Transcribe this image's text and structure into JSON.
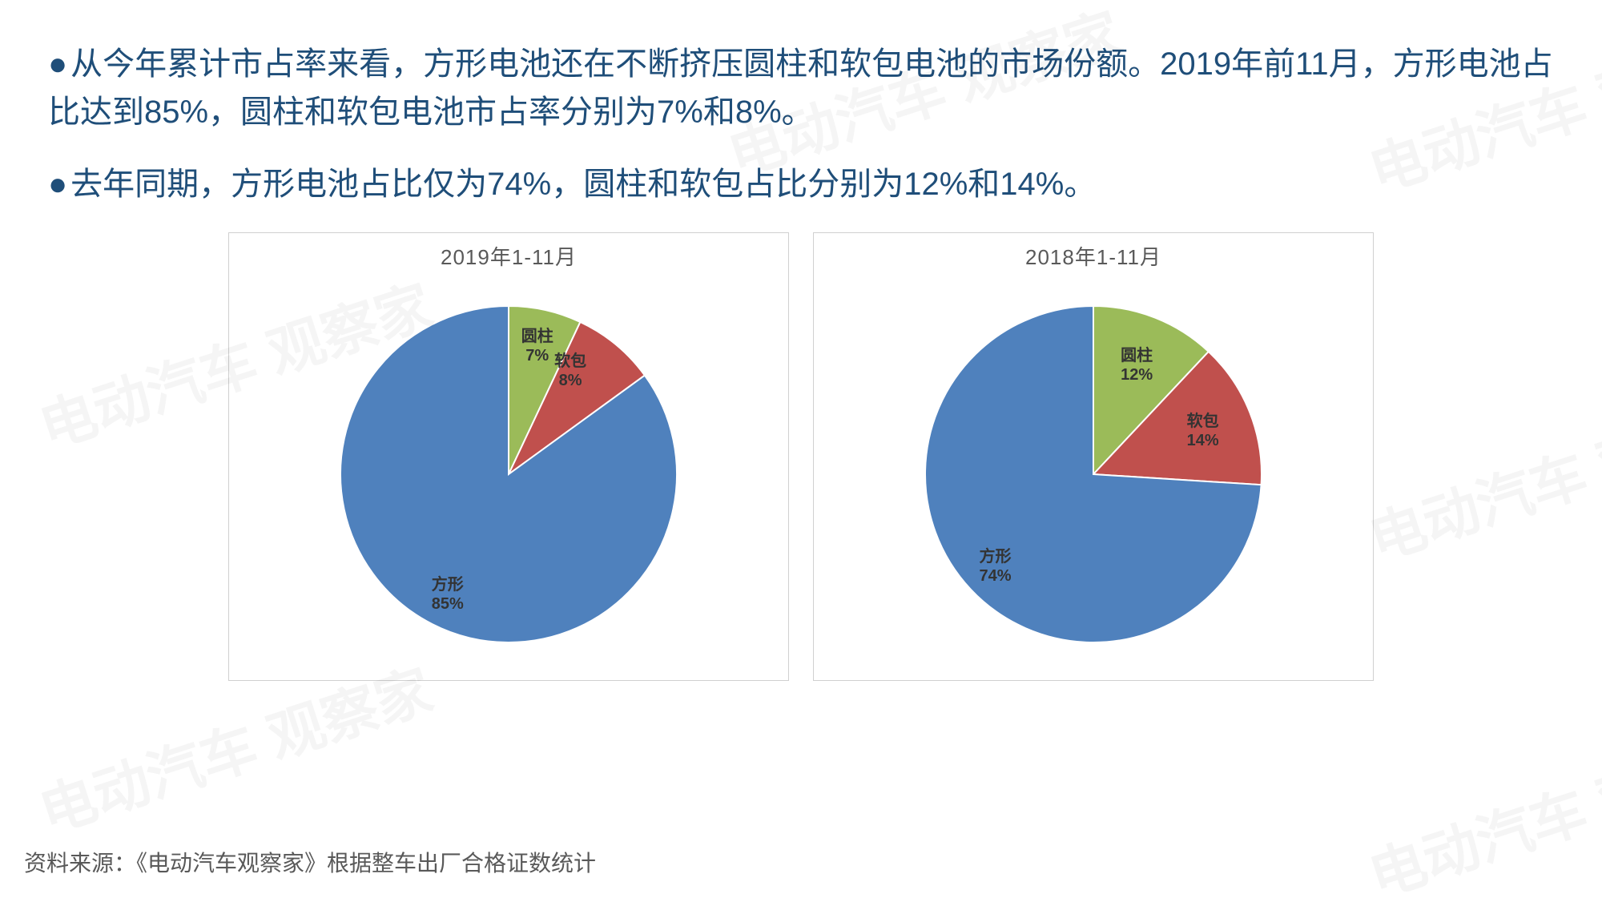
{
  "bullets": [
    "从今年累计市占率来看，方形电池还在不断挤压圆柱和软包电池的市场份额。2019年前11月，方形电池占比达到85%，圆柱和软包电池市占率分别为7%和8%。",
    "去年同期，方形电池占比仅为74%，圆柱和软包占比分别为12%和14%。"
  ],
  "footer": "资料来源：《电动汽车观察家》根据整车出厂合格证数统计",
  "watermark_text": "电动汽车\n观察家",
  "text_color": "#1f4e79",
  "chart_border_color": "#d0d0d0",
  "chart_title_color": "#595959",
  "pie_radius": 210,
  "start_angle_deg": -90,
  "slice_label_font_size": 20,
  "slice_label_color": "#333333",
  "slice_outline": "#ffffff",
  "charts": [
    {
      "title": "2019年1-11月",
      "type": "pie",
      "slices": [
        {
          "name": "圆柱",
          "value": 7,
          "color": "#9bbb59",
          "label_r": 0.78
        },
        {
          "name": "软包",
          "value": 8,
          "color": "#c0504d",
          "label_r": 0.8,
          "label_offset_x": -30
        },
        {
          "name": "方形",
          "value": 85,
          "color": "#4f81bd",
          "label_r": 0.8
        }
      ]
    },
    {
      "title": "2018年1-11月",
      "type": "pie",
      "slices": [
        {
          "name": "圆柱",
          "value": 12,
          "color": "#9bbb59",
          "label_r": 0.7
        },
        {
          "name": "软包",
          "value": 14,
          "color": "#c0504d",
          "label_r": 0.7
        },
        {
          "name": "方形",
          "value": 74,
          "color": "#4f81bd",
          "label_r": 0.8
        }
      ]
    }
  ]
}
